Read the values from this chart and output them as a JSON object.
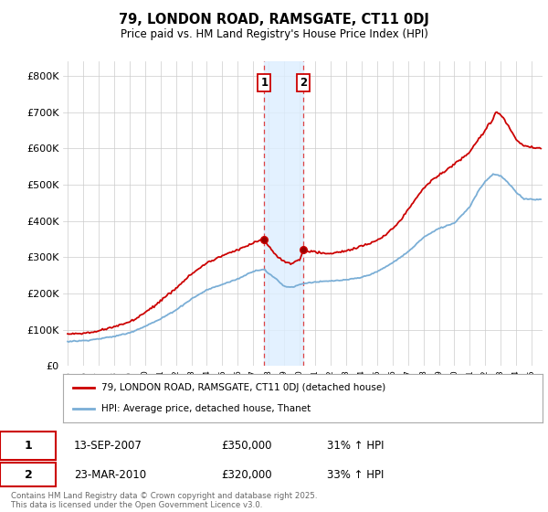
{
  "title": "79, LONDON ROAD, RAMSGATE, CT11 0DJ",
  "subtitle": "Price paid vs. HM Land Registry's House Price Index (HPI)",
  "ylim": [
    0,
    840000
  ],
  "yticks": [
    0,
    100000,
    200000,
    300000,
    400000,
    500000,
    600000,
    700000,
    800000
  ],
  "ytick_labels": [
    "£0",
    "£100K",
    "£200K",
    "£300K",
    "£400K",
    "£500K",
    "£600K",
    "£700K",
    "£800K"
  ],
  "line1_color": "#cc0000",
  "line2_color": "#7aaed6",
  "line1_label": "79, LONDON ROAD, RAMSGATE, CT11 0DJ (detached house)",
  "line2_label": "HPI: Average price, detached house, Thanet",
  "transaction1_date": "13-SEP-2007",
  "transaction1_price": "£350,000",
  "transaction1_hpi": "31% ↑ HPI",
  "transaction1_x": 2007.71,
  "transaction1_y": 350000,
  "transaction2_date": "23-MAR-2010",
  "transaction2_price": "£320,000",
  "transaction2_hpi": "33% ↑ HPI",
  "transaction2_x": 2010.22,
  "transaction2_y": 320000,
  "shade_color": "#ddeeff",
  "vline_color": "#dd4444",
  "footer": "Contains HM Land Registry data © Crown copyright and database right 2025.\nThis data is licensed under the Open Government Licence v3.0.",
  "bg_color": "#ffffff",
  "grid_color": "#cccccc",
  "xlim_left": 1994.7,
  "xlim_right": 2025.7
}
